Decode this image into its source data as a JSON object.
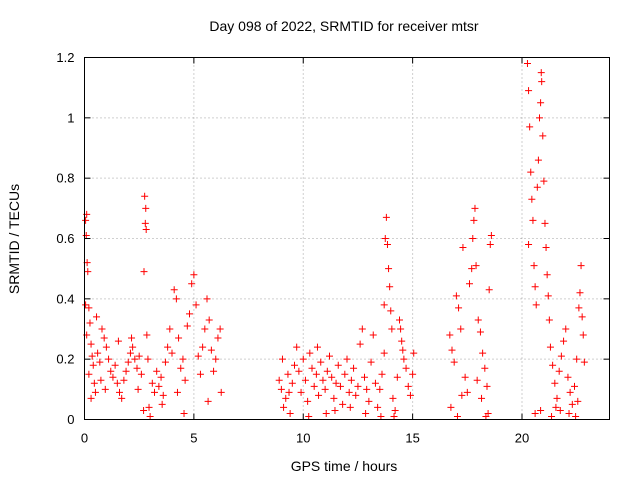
{
  "chart_data": {
    "type": "scatter",
    "title": "Day 098 of 2022, SRMTID for receiver mtsr",
    "xlabel": "GPS time / hours",
    "ylabel": "SRMTID / TECUs",
    "xlim": [
      0,
      24
    ],
    "ylim": [
      0,
      1.2
    ],
    "xticks": [
      0,
      5,
      10,
      15,
      20
    ],
    "yticks": [
      0,
      0.2,
      0.4,
      0.6,
      0.8,
      1.0,
      1.2
    ],
    "xtick_labels": [
      "0",
      "5",
      "10",
      "15",
      "20"
    ],
    "ytick_labels": [
      "0",
      "0.2",
      "0.4",
      "0.6",
      "0.8",
      "1",
      "1.2"
    ],
    "grid": true,
    "marker": "+",
    "color": "#ff0000",
    "series": [
      {
        "name": "SRMTID",
        "points": [
          [
            0.05,
            0.66
          ],
          [
            0.08,
            0.61
          ],
          [
            0.1,
            0.68
          ],
          [
            0.12,
            0.52
          ],
          [
            0.15,
            0.49
          ],
          [
            0.05,
            0.38
          ],
          [
            0.2,
            0.37
          ],
          [
            0.25,
            0.32
          ],
          [
            0.1,
            0.28
          ],
          [
            0.3,
            0.25
          ],
          [
            0.35,
            0.21
          ],
          [
            0.4,
            0.18
          ],
          [
            0.2,
            0.15
          ],
          [
            0.45,
            0.12
          ],
          [
            0.5,
            0.09
          ],
          [
            0.3,
            0.07
          ],
          [
            0.6,
            0.22
          ],
          [
            0.7,
            0.19
          ],
          [
            0.8,
            0.3
          ],
          [
            0.9,
            0.27
          ],
          [
            1.0,
            0.24
          ],
          [
            1.1,
            0.2
          ],
          [
            0.75,
            0.13
          ],
          [
            0.95,
            0.1
          ],
          [
            1.2,
            0.16
          ],
          [
            1.3,
            0.14
          ],
          [
            1.4,
            0.18
          ],
          [
            1.5,
            0.12
          ],
          [
            1.6,
            0.09
          ],
          [
            1.7,
            0.07
          ],
          [
            1.8,
            0.13
          ],
          [
            1.9,
            0.16
          ],
          [
            2.0,
            0.19
          ],
          [
            2.1,
            0.22
          ],
          [
            2.2,
            0.24
          ],
          [
            2.3,
            0.2
          ],
          [
            2.4,
            0.17
          ],
          [
            2.5,
            0.21
          ],
          [
            2.6,
            0.15
          ],
          [
            2.15,
            0.27
          ],
          [
            2.75,
            0.74
          ],
          [
            2.8,
            0.7
          ],
          [
            2.78,
            0.65
          ],
          [
            2.82,
            0.63
          ],
          [
            2.72,
            0.49
          ],
          [
            2.85,
            0.28
          ],
          [
            2.9,
            0.2
          ],
          [
            2.95,
            0.04
          ],
          [
            3.0,
            0.01
          ],
          [
            2.7,
            0.03
          ],
          [
            3.1,
            0.12
          ],
          [
            3.2,
            0.09
          ],
          [
            3.3,
            0.16
          ],
          [
            3.4,
            0.11
          ],
          [
            3.5,
            0.14
          ],
          [
            3.6,
            0.08
          ],
          [
            3.7,
            0.19
          ],
          [
            3.8,
            0.24
          ],
          [
            3.9,
            0.3
          ],
          [
            4.0,
            0.22
          ],
          [
            4.1,
            0.43
          ],
          [
            4.2,
            0.4
          ],
          [
            4.3,
            0.27
          ],
          [
            4.4,
            0.17
          ],
          [
            4.5,
            0.2
          ],
          [
            4.6,
            0.13
          ],
          [
            4.7,
            0.31
          ],
          [
            4.8,
            0.35
          ],
          [
            4.9,
            0.45
          ],
          [
            5.0,
            0.48
          ],
          [
            5.1,
            0.38
          ],
          [
            5.2,
            0.21
          ],
          [
            5.3,
            0.15
          ],
          [
            5.4,
            0.24
          ],
          [
            5.5,
            0.3
          ],
          [
            5.6,
            0.4
          ],
          [
            5.7,
            0.33
          ],
          [
            5.8,
            0.23
          ],
          [
            5.9,
            0.16
          ],
          [
            6.0,
            0.2
          ],
          [
            6.1,
            0.27
          ],
          [
            6.2,
            0.3
          ],
          [
            6.25,
            0.09
          ],
          [
            5.65,
            0.06
          ],
          [
            4.55,
            0.02
          ],
          [
            3.55,
            0.05
          ],
          [
            1.55,
            0.26
          ],
          [
            0.55,
            0.34
          ],
          [
            2.45,
            0.1
          ],
          [
            4.25,
            0.09
          ],
          [
            8.9,
            0.13
          ],
          [
            9.0,
            0.1
          ],
          [
            9.05,
            0.2
          ],
          [
            9.1,
            0.04
          ],
          [
            9.2,
            0.07
          ],
          [
            9.3,
            0.15
          ],
          [
            9.4,
            0.02
          ],
          [
            9.5,
            0.12
          ],
          [
            9.6,
            0.18
          ],
          [
            9.7,
            0.24
          ],
          [
            9.8,
            0.16
          ],
          [
            9.9,
            0.09
          ],
          [
            10.0,
            0.2
          ],
          [
            10.1,
            0.13
          ],
          [
            10.2,
            0.06
          ],
          [
            10.3,
            0.22
          ],
          [
            10.4,
            0.17
          ],
          [
            10.5,
            0.11
          ],
          [
            10.6,
            0.15
          ],
          [
            10.7,
            0.08
          ],
          [
            10.8,
            0.19
          ],
          [
            10.9,
            0.13
          ],
          [
            11.0,
            0.1
          ],
          [
            11.1,
            0.16
          ],
          [
            11.2,
            0.21
          ],
          [
            11.3,
            0.14
          ],
          [
            11.4,
            0.07
          ],
          [
            11.5,
            0.12
          ],
          [
            11.6,
            0.18
          ],
          [
            11.7,
            0.11
          ],
          [
            11.8,
            0.05
          ],
          [
            11.9,
            0.15
          ],
          [
            12.0,
            0.2
          ],
          [
            12.1,
            0.09
          ],
          [
            12.2,
            0.13
          ],
          [
            12.3,
            0.17
          ],
          [
            12.4,
            0.08
          ],
          [
            12.5,
            0.11
          ],
          [
            12.6,
            0.25
          ],
          [
            12.7,
            0.3
          ],
          [
            12.8,
            0.14
          ],
          [
            12.9,
            0.1
          ],
          [
            13.0,
            0.06
          ],
          [
            13.1,
            0.19
          ],
          [
            13.2,
            0.28
          ],
          [
            13.3,
            0.12
          ],
          [
            13.4,
            0.04
          ],
          [
            13.5,
            0.1
          ],
          [
            13.6,
            0.15
          ],
          [
            13.7,
            0.22
          ],
          [
            13.75,
            0.6
          ],
          [
            13.8,
            0.67
          ],
          [
            13.85,
            0.58
          ],
          [
            13.9,
            0.5
          ],
          [
            13.95,
            0.44
          ],
          [
            13.7,
            0.38
          ],
          [
            14.0,
            0.36
          ],
          [
            14.05,
            0.3
          ],
          [
            14.1,
            0.07
          ],
          [
            14.2,
            0.03
          ],
          [
            14.3,
            0.14
          ],
          [
            14.4,
            0.33
          ],
          [
            14.45,
            0.3
          ],
          [
            14.5,
            0.26
          ],
          [
            14.55,
            0.23
          ],
          [
            14.6,
            0.2
          ],
          [
            14.7,
            0.17
          ],
          [
            14.8,
            0.11
          ],
          [
            14.9,
            0.08
          ],
          [
            15.0,
            0.15
          ],
          [
            15.05,
            0.22
          ],
          [
            9.35,
            0.09
          ],
          [
            10.25,
            0.01
          ],
          [
            11.45,
            0.03
          ],
          [
            12.85,
            0.02
          ],
          [
            13.55,
            0.01
          ],
          [
            14.15,
            0.01
          ],
          [
            10.65,
            0.24
          ],
          [
            11.05,
            0.02
          ],
          [
            12.15,
            0.04
          ],
          [
            16.7,
            0.28
          ],
          [
            16.8,
            0.23
          ],
          [
            16.9,
            0.19
          ],
          [
            17.0,
            0.41
          ],
          [
            17.1,
            0.37
          ],
          [
            17.2,
            0.3
          ],
          [
            17.3,
            0.57
          ],
          [
            17.4,
            0.14
          ],
          [
            17.5,
            0.09
          ],
          [
            17.6,
            0.45
          ],
          [
            17.7,
            0.5
          ],
          [
            17.75,
            0.6
          ],
          [
            17.8,
            0.66
          ],
          [
            17.85,
            0.7
          ],
          [
            17.9,
            0.51
          ],
          [
            18.0,
            0.33
          ],
          [
            18.1,
            0.29
          ],
          [
            18.2,
            0.22
          ],
          [
            18.3,
            0.17
          ],
          [
            18.4,
            0.11
          ],
          [
            18.5,
            0.43
          ],
          [
            18.55,
            0.58
          ],
          [
            18.6,
            0.61
          ],
          [
            16.75,
            0.04
          ],
          [
            17.05,
            0.01
          ],
          [
            17.25,
            0.08
          ],
          [
            17.95,
            0.13
          ],
          [
            18.15,
            0.07
          ],
          [
            18.35,
            0.01
          ],
          [
            18.45,
            0.02
          ],
          [
            20.25,
            1.18
          ],
          [
            20.3,
            1.09
          ],
          [
            20.35,
            0.97
          ],
          [
            20.4,
            0.82
          ],
          [
            20.45,
            0.73
          ],
          [
            20.5,
            0.66
          ],
          [
            20.3,
            0.58
          ],
          [
            20.55,
            0.51
          ],
          [
            20.6,
            0.44
          ],
          [
            20.65,
            0.38
          ],
          [
            20.7,
            0.77
          ],
          [
            20.75,
            0.86
          ],
          [
            20.8,
            1.0
          ],
          [
            20.85,
            1.05
          ],
          [
            20.88,
            1.15
          ],
          [
            20.9,
            1.12
          ],
          [
            20.95,
            0.94
          ],
          [
            21.0,
            0.79
          ],
          [
            21.05,
            0.65
          ],
          [
            21.1,
            0.57
          ],
          [
            21.15,
            0.48
          ],
          [
            21.2,
            0.41
          ],
          [
            21.25,
            0.33
          ],
          [
            21.3,
            0.24
          ],
          [
            21.4,
            0.18
          ],
          [
            21.5,
            0.12
          ],
          [
            21.6,
            0.07
          ],
          [
            21.7,
            0.16
          ],
          [
            21.8,
            0.21
          ],
          [
            21.9,
            0.26
          ],
          [
            22.0,
            0.3
          ],
          [
            22.1,
            0.14
          ],
          [
            22.2,
            0.09
          ],
          [
            22.3,
            0.05
          ],
          [
            22.4,
            0.11
          ],
          [
            22.5,
            0.2
          ],
          [
            22.6,
            0.37
          ],
          [
            22.65,
            0.42
          ],
          [
            22.7,
            0.51
          ],
          [
            22.75,
            0.34
          ],
          [
            20.6,
            0.02
          ],
          [
            21.35,
            0.01
          ],
          [
            21.75,
            0.03
          ],
          [
            22.45,
            0.01
          ],
          [
            22.55,
            0.06
          ],
          [
            20.85,
            0.03
          ],
          [
            21.55,
            0.04
          ],
          [
            22.15,
            0.02
          ],
          [
            22.8,
            0.28
          ],
          [
            22.85,
            0.19
          ]
        ]
      }
    ]
  }
}
